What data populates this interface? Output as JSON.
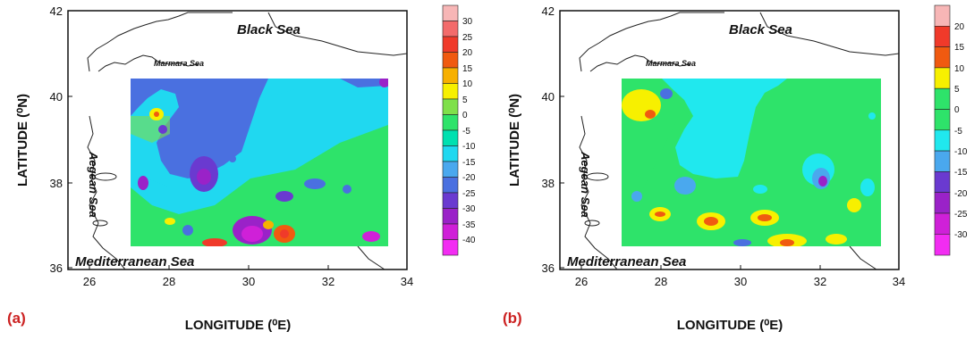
{
  "panels": [
    {
      "letter": "(a)",
      "xlabel": "LONGITUDE (⁰E)",
      "ylabel": "LATITUDE (⁰N)",
      "x_ticks": [
        "26",
        "28",
        "30",
        "32",
        "34"
      ],
      "y_ticks": [
        "42",
        "40",
        "38",
        "36"
      ],
      "seas": {
        "black": "Black Sea",
        "marmara": "Marmara Sea",
        "aegean": "Aegean Sea",
        "mediterranean": "Mediterranean Sea"
      },
      "colorbar_ticks": [
        "30",
        "25",
        "20",
        "15",
        "10",
        "5",
        "0",
        "-5",
        "-10",
        "-15",
        "-20",
        "-25",
        "-30",
        "-35",
        "-40"
      ],
      "colorbar_colors": [
        "#f7b6b6",
        "#f36b6b",
        "#f03a2a",
        "#f05a10",
        "#f7b000",
        "#f7f000",
        "#7fe04a",
        "#2ee36a",
        "#00e0b0",
        "#20d8f0",
        "#4aa8ee",
        "#4a70e0",
        "#6a3ad0",
        "#9a22c8",
        "#cf20d8",
        "#f22cf2"
      ]
    },
    {
      "letter": "(b)",
      "xlabel": "LONGITUDE (⁰E)",
      "ylabel": "LATITUDE (⁰N)",
      "x_ticks": [
        "26",
        "28",
        "30",
        "32",
        "34"
      ],
      "y_ticks": [
        "42",
        "40",
        "38",
        "36"
      ],
      "seas": {
        "black": "Black Sea",
        "marmara": "Marmara Sea",
        "aegean": "Aegean Sea",
        "mediterranean": "Mediterranean Sea"
      },
      "colorbar_ticks": [
        "20",
        "15",
        "10",
        "5",
        "0",
        "-5",
        "-10",
        "-15",
        "-20",
        "-25",
        "-30"
      ],
      "colorbar_colors": [
        "#f7b6b6",
        "#f03a2a",
        "#f05a10",
        "#f7f000",
        "#2ee36a",
        "#2ee36a",
        "#20e8ee",
        "#4aa8ee",
        "#6a3ad0",
        "#9a22c8",
        "#cf20d8",
        "#f22cf2"
      ]
    }
  ]
}
